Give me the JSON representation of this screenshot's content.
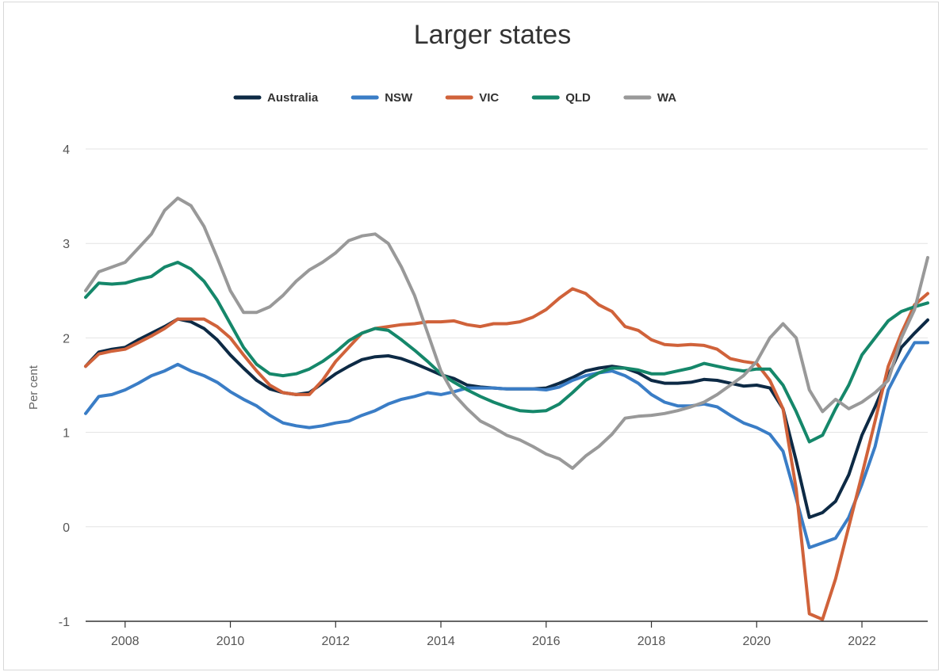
{
  "chart_data": {
    "type": "line",
    "title": "Larger states",
    "ylabel": "Per cent",
    "xlabel": "",
    "ylim": [
      -1,
      4
    ],
    "xlim": [
      2007.25,
      2023.25
    ],
    "yticks": [
      4,
      3,
      2,
      1,
      0,
      -1
    ],
    "ytick_labels": [
      "4",
      "3",
      "2",
      "1",
      "0",
      "-1"
    ],
    "xticks": [
      2008,
      2010,
      2012,
      2014,
      2016,
      2018,
      2020,
      2022
    ],
    "xtick_labels": [
      "2008",
      "2010",
      "2012",
      "2014",
      "2016",
      "2018",
      "2020",
      "2022"
    ],
    "grid": "horizontal",
    "legend": "top-center",
    "x": [
      2007.25,
      2007.5,
      2007.75,
      2008,
      2008.25,
      2008.5,
      2008.75,
      2009,
      2009.25,
      2009.5,
      2009.75,
      2010,
      2010.25,
      2010.5,
      2010.75,
      2011,
      2011.25,
      2011.5,
      2011.75,
      2012,
      2012.25,
      2012.5,
      2012.75,
      2013,
      2013.25,
      2013.5,
      2013.75,
      2014,
      2014.25,
      2014.5,
      2014.75,
      2015,
      2015.25,
      2015.5,
      2015.75,
      2016,
      2016.25,
      2016.5,
      2016.75,
      2017,
      2017.25,
      2017.5,
      2017.75,
      2018,
      2018.25,
      2018.5,
      2018.75,
      2019,
      2019.25,
      2019.5,
      2019.75,
      2020,
      2020.25,
      2020.5,
      2020.75,
      2021,
      2021.25,
      2021.5,
      2021.75,
      2022,
      2022.25,
      2022.5,
      2022.75,
      2023,
      2023.25
    ],
    "series": [
      {
        "name": "Australia",
        "color": "#0d2a45",
        "values": [
          1.7,
          1.85,
          1.88,
          1.9,
          1.98,
          2.05,
          2.12,
          2.2,
          2.17,
          2.1,
          1.98,
          1.82,
          1.68,
          1.55,
          1.46,
          1.42,
          1.4,
          1.42,
          1.52,
          1.62,
          1.7,
          1.77,
          1.8,
          1.81,
          1.78,
          1.73,
          1.67,
          1.61,
          1.57,
          1.5,
          1.48,
          1.47,
          1.46,
          1.46,
          1.46,
          1.47,
          1.52,
          1.58,
          1.65,
          1.68,
          1.7,
          1.68,
          1.63,
          1.55,
          1.52,
          1.52,
          1.53,
          1.56,
          1.55,
          1.52,
          1.49,
          1.5,
          1.47,
          1.25,
          0.7,
          0.1,
          0.15,
          0.27,
          0.55,
          0.97,
          1.27,
          1.6,
          1.9,
          2.05,
          2.19
        ]
      },
      {
        "name": "NSW",
        "color": "#3a7dc6",
        "values": [
          1.2,
          1.38,
          1.4,
          1.45,
          1.52,
          1.6,
          1.65,
          1.72,
          1.65,
          1.6,
          1.53,
          1.43,
          1.35,
          1.28,
          1.18,
          1.1,
          1.07,
          1.05,
          1.07,
          1.1,
          1.12,
          1.18,
          1.23,
          1.3,
          1.35,
          1.38,
          1.42,
          1.4,
          1.43,
          1.47,
          1.47,
          1.47,
          1.46,
          1.46,
          1.46,
          1.45,
          1.48,
          1.55,
          1.6,
          1.63,
          1.65,
          1.6,
          1.52,
          1.4,
          1.32,
          1.28,
          1.28,
          1.3,
          1.27,
          1.18,
          1.1,
          1.05,
          0.98,
          0.8,
          0.3,
          -0.22,
          -0.17,
          -0.12,
          0.1,
          0.45,
          0.85,
          1.45,
          1.72,
          1.95,
          1.95
        ]
      },
      {
        "name": "VIC",
        "color": "#d0623a",
        "values": [
          1.7,
          1.83,
          1.86,
          1.88,
          1.95,
          2.02,
          2.1,
          2.2,
          2.2,
          2.2,
          2.12,
          2.0,
          1.82,
          1.65,
          1.5,
          1.42,
          1.4,
          1.4,
          1.55,
          1.75,
          1.9,
          2.05,
          2.1,
          2.12,
          2.14,
          2.15,
          2.17,
          2.17,
          2.18,
          2.14,
          2.12,
          2.15,
          2.15,
          2.17,
          2.22,
          2.3,
          2.42,
          2.52,
          2.47,
          2.35,
          2.28,
          2.12,
          2.08,
          1.98,
          1.93,
          1.92,
          1.93,
          1.92,
          1.88,
          1.78,
          1.75,
          1.73,
          1.55,
          1.25,
          0.4,
          -0.92,
          -0.98,
          -0.55,
          0.0,
          0.55,
          1.12,
          1.7,
          2.05,
          2.35,
          2.47
        ]
      },
      {
        "name": "QLD",
        "color": "#15876a",
        "values": [
          2.43,
          2.58,
          2.57,
          2.58,
          2.62,
          2.65,
          2.75,
          2.8,
          2.73,
          2.6,
          2.4,
          2.15,
          1.9,
          1.72,
          1.62,
          1.6,
          1.62,
          1.67,
          1.75,
          1.85,
          1.97,
          2.05,
          2.1,
          2.08,
          1.98,
          1.87,
          1.75,
          1.62,
          1.53,
          1.45,
          1.38,
          1.32,
          1.27,
          1.23,
          1.22,
          1.23,
          1.3,
          1.42,
          1.55,
          1.63,
          1.68,
          1.68,
          1.66,
          1.62,
          1.62,
          1.65,
          1.68,
          1.73,
          1.7,
          1.67,
          1.65,
          1.67,
          1.67,
          1.5,
          1.22,
          0.9,
          0.97,
          1.25,
          1.5,
          1.82,
          2.0,
          2.18,
          2.28,
          2.33,
          2.37
        ]
      },
      {
        "name": "WA",
        "color": "#999999",
        "values": [
          2.5,
          2.7,
          2.75,
          2.8,
          2.95,
          3.1,
          3.35,
          3.48,
          3.4,
          3.18,
          2.85,
          2.5,
          2.27,
          2.27,
          2.33,
          2.45,
          2.6,
          2.72,
          2.8,
          2.9,
          3.03,
          3.08,
          3.1,
          3.0,
          2.75,
          2.45,
          2.05,
          1.65,
          1.4,
          1.25,
          1.12,
          1.05,
          0.97,
          0.92,
          0.85,
          0.77,
          0.72,
          0.62,
          0.75,
          0.85,
          0.98,
          1.15,
          1.17,
          1.18,
          1.2,
          1.23,
          1.27,
          1.32,
          1.4,
          1.5,
          1.6,
          1.75,
          2.0,
          2.15,
          2.0,
          1.45,
          1.22,
          1.35,
          1.25,
          1.32,
          1.42,
          1.55,
          2.0,
          2.3,
          2.85
        ]
      }
    ]
  }
}
